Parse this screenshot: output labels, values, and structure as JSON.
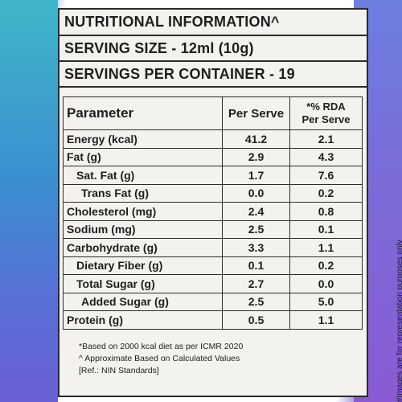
{
  "title": "NUTRITIONAL INFORMATION^",
  "serving_size": "SERVING SIZE - 12ml (10g)",
  "servings_per_container": "SERVINGS PER CONTAINER - 19",
  "table": {
    "headers": {
      "parameter": "Parameter",
      "per_serve": "Per Serve",
      "rda_line1": "*% RDA",
      "rda_line2": "Per Serve"
    },
    "rows": [
      {
        "name": "Energy (kcal)",
        "per_serve": "41.2",
        "rda": "2.1"
      },
      {
        "name": "Fat (g)",
        "per_serve": "2.9",
        "rda": "4.3"
      },
      {
        "name": "Sat. Fat (g)",
        "per_serve": "1.7",
        "rda": "7.6"
      },
      {
        "name": "Trans Fat (g)",
        "per_serve": "0.0",
        "rda": "0.2"
      },
      {
        "name": "Cholesterol (mg)",
        "per_serve": "2.4",
        "rda": "0.8"
      },
      {
        "name": "Sodium (mg)",
        "per_serve": "2.5",
        "rda": "0.1"
      },
      {
        "name": "Carbohydrate (g)",
        "per_serve": "3.3",
        "rda": "1.1"
      },
      {
        "name": "Dietary Fiber (g)",
        "per_serve": "0.1",
        "rda": "0.2"
      },
      {
        "name": "Total Sugar (g)",
        "per_serve": "2.7",
        "rda": "0.0"
      },
      {
        "name": "Added Sugar (g)",
        "per_serve": "2.5",
        "rda": "5.0"
      },
      {
        "name": "Protein (g)",
        "per_serve": "0.5",
        "rda": "1.1"
      }
    ]
  },
  "notes": {
    "line1": "*Based on 2000 kcal diet as per ICMR 2020",
    "line2": "^ Approximate Based on Calculated Values",
    "line3": "[Ref.: NIN Standards]"
  },
  "side_disclaimer": "#Images are for representation purposes only"
}
